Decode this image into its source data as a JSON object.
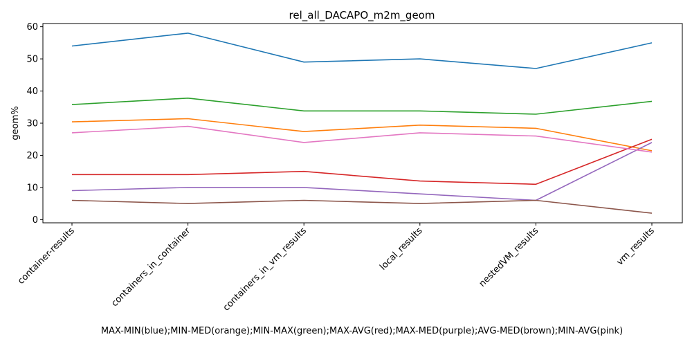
{
  "chart_data": {
    "type": "line",
    "title": "rel_all_DACAPO_m2m_geom",
    "xlabel": "MAX-MIN(blue);MIN-MED(orange);MIN-MAX(green);MAX-AVG(red);MAX-MED(purple);AVG-MED(brown);MIN-AVG(pink)",
    "ylabel": "geom%",
    "categories": [
      "container-results",
      "containers_in_container",
      "containers_in_vm_results",
      "local_results",
      "nestedVM_results",
      "vm_results"
    ],
    "yticks": [
      0,
      10,
      20,
      30,
      40,
      50,
      60
    ],
    "ylim": [
      -1,
      61
    ],
    "grid": false,
    "series": [
      {
        "color": "#1f77b4",
        "values": [
          54,
          58,
          49,
          50,
          47,
          55
        ]
      },
      {
        "color": "#ff7f0e",
        "values": [
          30.4,
          31.4,
          27.4,
          29.4,
          28.4,
          21.4
        ]
      },
      {
        "color": "#2ca02c",
        "values": [
          35.8,
          37.8,
          33.8,
          33.8,
          32.8,
          36.8
        ]
      },
      {
        "color": "#d62728",
        "values": [
          14,
          14,
          15,
          12,
          11,
          25
        ]
      },
      {
        "color": "#9467bd",
        "values": [
          9,
          10,
          10,
          8,
          6,
          24
        ]
      },
      {
        "color": "#8c564b",
        "values": [
          6,
          5,
          6,
          5,
          6,
          2
        ]
      },
      {
        "color": "#e377c2",
        "values": [
          27,
          29,
          24,
          27,
          26,
          21
        ]
      }
    ]
  }
}
